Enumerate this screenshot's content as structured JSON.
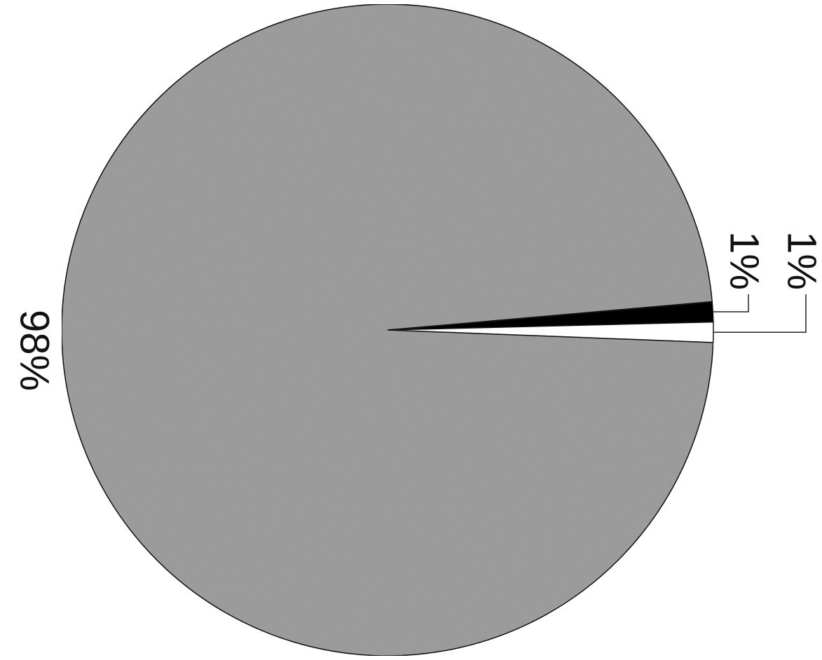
{
  "chart_data": {
    "type": "pie",
    "values": [
      1,
      1,
      98
    ],
    "value_labels": [
      "1%",
      "1%",
      "98%"
    ],
    "colors": [
      "#000000",
      "#ffffff",
      "#a9a9a9"
    ]
  }
}
